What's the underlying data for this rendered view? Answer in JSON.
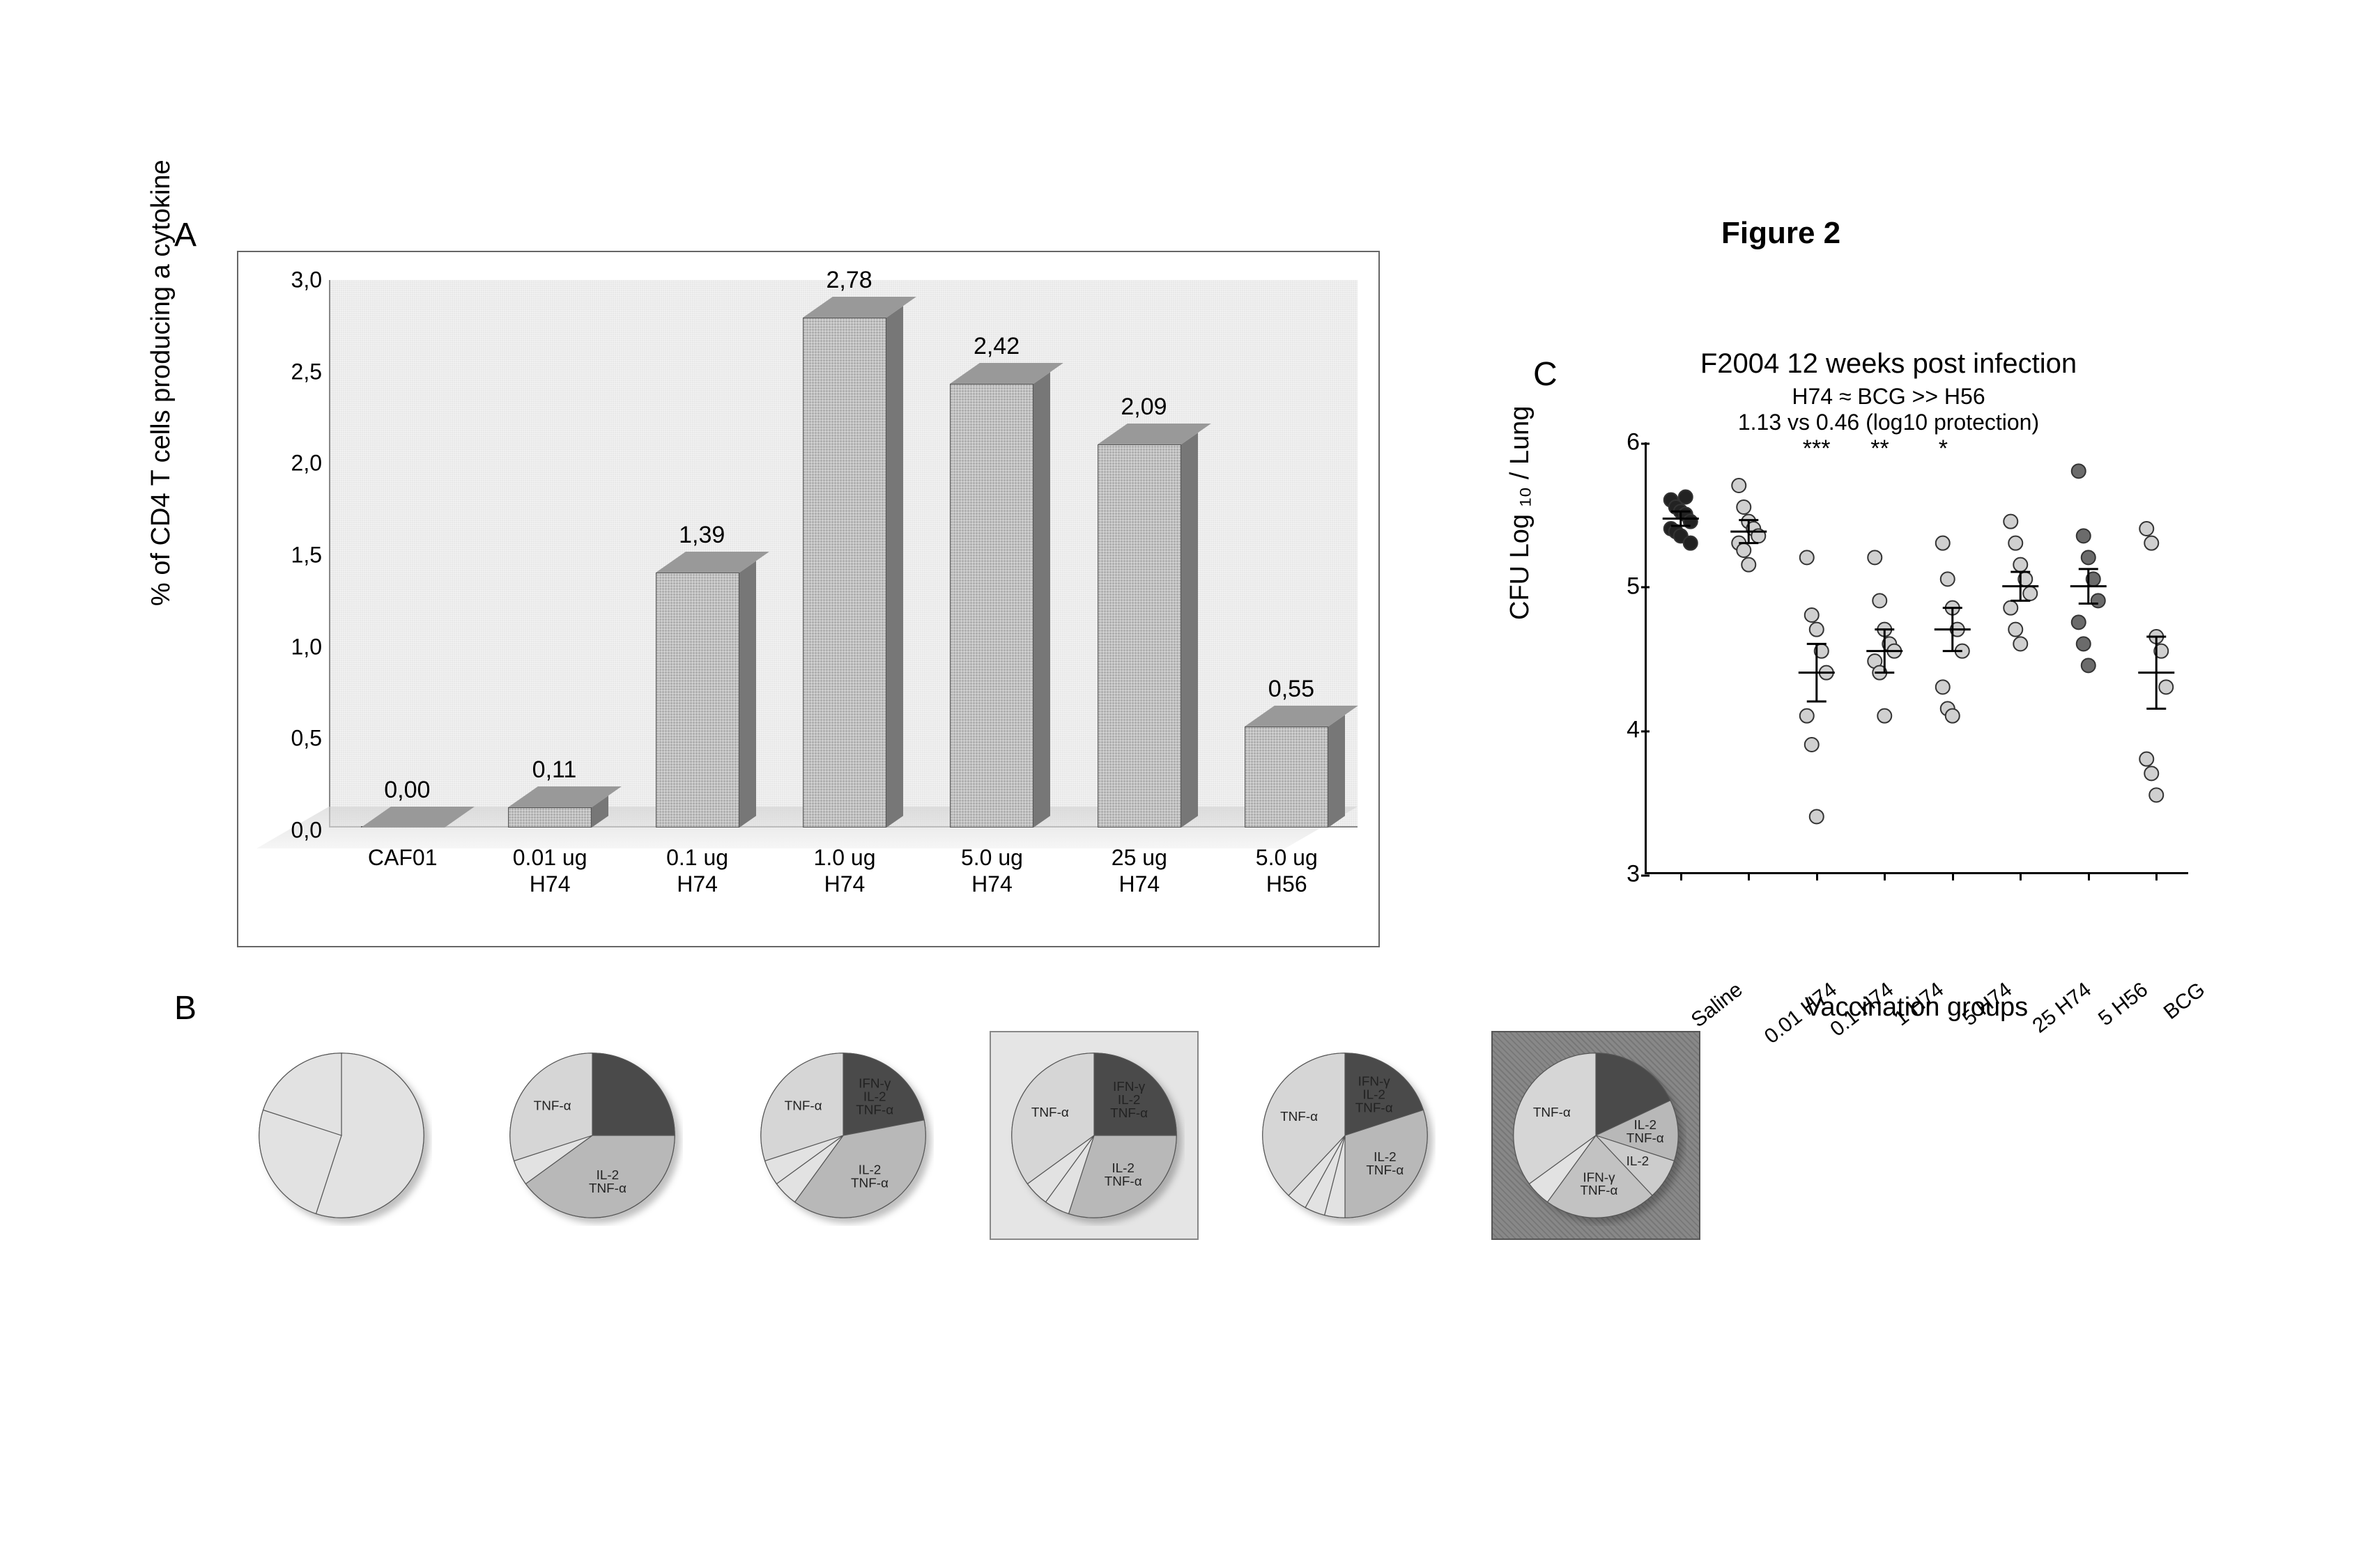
{
  "figure_caption": "Figure 2",
  "panels": {
    "A": "A",
    "B": "B",
    "C": "C"
  },
  "panelA": {
    "type": "bar",
    "ylabel": "% of CD4 T cells producing a cytokine",
    "ylim": [
      0,
      3.0
    ],
    "ytick_step": 0.5,
    "yticks_labels": [
      "0,0",
      "0,5",
      "1,0",
      "1,5",
      "2,0",
      "2,5",
      "3,0"
    ],
    "bar_color": "#b0b0b0",
    "background_color": "#e8e8e8",
    "value_fontsize": 34,
    "label_fontsize": 32,
    "categories": [
      "CAF01",
      "0.01 ug\nH74",
      "0.1 ug\nH74",
      "1.0 ug\nH74",
      "5.0 ug\nH74",
      "25 ug\nH74",
      "5.0 ug\nH56"
    ],
    "values": [
      0.0,
      0.11,
      1.39,
      2.78,
      2.42,
      2.09,
      0.55
    ],
    "value_labels": [
      "0,00",
      "0,11",
      "1,39",
      "2,78",
      "2,42",
      "2,09",
      "0,55"
    ]
  },
  "panelB": {
    "type": "pie-row",
    "pie_colors": {
      "triple": "#4a4a4a",
      "il2_tnf": "#b8b8b8",
      "tnf": "#d6d6d6",
      "ifn_tnf": "#c2c2c2",
      "il2": "#cccccc",
      "other": "#e2e2e2",
      "stroke": "#555555"
    },
    "label_fontsize": 16,
    "highlighted": [
      3,
      5
    ],
    "highlight_styles": [
      "light",
      "dark"
    ],
    "pies": [
      {
        "slices": [
          {
            "name": "other",
            "frac": 0.55
          },
          {
            "name": "other",
            "frac": 0.25
          },
          {
            "name": "other",
            "frac": 0.2
          }
        ],
        "labels": []
      },
      {
        "slices": [
          {
            "name": "triple",
            "frac": 0.25
          },
          {
            "name": "il2_tnf",
            "frac": 0.4,
            "label": "IL-2\nTNF-α"
          },
          {
            "name": "other",
            "frac": 0.05
          },
          {
            "name": "tnf",
            "frac": 0.3,
            "label": "TNF-α"
          }
        ]
      },
      {
        "slices": [
          {
            "name": "triple",
            "frac": 0.22,
            "label": "IFN-γ\nIL-2\nTNF-α"
          },
          {
            "name": "il2_tnf",
            "frac": 0.38,
            "label": "IL-2\nTNF-α"
          },
          {
            "name": "other",
            "frac": 0.05
          },
          {
            "name": "other",
            "frac": 0.05
          },
          {
            "name": "tnf",
            "frac": 0.3,
            "label": "TNF-α"
          }
        ]
      },
      {
        "slices": [
          {
            "name": "triple",
            "frac": 0.25,
            "label": "IFN-γ\nIL-2\nTNF-α"
          },
          {
            "name": "il2_tnf",
            "frac": 0.3,
            "label": "IL-2\nTNF-α"
          },
          {
            "name": "other",
            "frac": 0.05
          },
          {
            "name": "other",
            "frac": 0.05
          },
          {
            "name": "tnf",
            "frac": 0.35,
            "label": "TNF-α"
          }
        ]
      },
      {
        "slices": [
          {
            "name": "triple",
            "frac": 0.2,
            "label": "IFN-γ\nIL-2\nTNF-α"
          },
          {
            "name": "il2_tnf",
            "frac": 0.3,
            "label": "IL-2\nTNF-α"
          },
          {
            "name": "other",
            "frac": 0.04
          },
          {
            "name": "other",
            "frac": 0.04
          },
          {
            "name": "other",
            "frac": 0.04
          },
          {
            "name": "tnf",
            "frac": 0.38,
            "label": "TNF-α"
          }
        ]
      },
      {
        "slices": [
          {
            "name": "triple",
            "frac": 0.18
          },
          {
            "name": "il2_tnf",
            "frac": 0.12,
            "label": "IL-2\nTNF-α"
          },
          {
            "name": "il2",
            "frac": 0.08,
            "label": "IL-2"
          },
          {
            "name": "ifn_tnf",
            "frac": 0.22,
            "label": "IFN-γ\nTNF-α"
          },
          {
            "name": "other",
            "frac": 0.05
          },
          {
            "name": "tnf",
            "frac": 0.35,
            "label": "TNF-α"
          }
        ]
      }
    ]
  },
  "panelC": {
    "type": "scatter",
    "title": "F2004 12 weeks post infection",
    "subtitle1": "H74 ≈ BCG >> H56",
    "subtitle2": "1.13 vs 0.46 (log10 protection)",
    "ylabel": "CFU Log ₁₀ / Lung",
    "xlabel": "Vaccination groups",
    "ylim": [
      3,
      6
    ],
    "ytick_step": 1,
    "title_fontsize": 40,
    "subtitle_fontsize": 32,
    "axis_label_fontsize": 38,
    "tick_fontsize": 34,
    "marker_stroke": "#333333",
    "colors": {
      "saline": "#222222",
      "light": "#d0d0d0",
      "dark": "#6b6b6b"
    },
    "groups": [
      {
        "name": "Saline",
        "color": "saline",
        "sig": "",
        "mean": 5.47,
        "sem": 0.05,
        "points": [
          5.6,
          5.55,
          5.52,
          5.5,
          5.45,
          5.4,
          5.38,
          5.35,
          5.62,
          5.3
        ]
      },
      {
        "name": "0.01 H74",
        "color": "light",
        "sig": "",
        "mean": 5.38,
        "sem": 0.08,
        "points": [
          5.7,
          5.55,
          5.45,
          5.4,
          5.35,
          5.3,
          5.25,
          5.15
        ]
      },
      {
        "name": "0.1 H74",
        "color": "light",
        "sig": "***",
        "mean": 4.4,
        "sem": 0.2,
        "points": [
          5.2,
          4.8,
          4.7,
          4.55,
          4.4,
          4.1,
          3.9,
          3.4
        ]
      },
      {
        "name": "1 H74",
        "color": "light",
        "sig": "**",
        "mean": 4.55,
        "sem": 0.15,
        "points": [
          5.2,
          4.9,
          4.7,
          4.6,
          4.55,
          4.48,
          4.4,
          4.1
        ]
      },
      {
        "name": "5 H74",
        "color": "light",
        "sig": "*",
        "mean": 4.7,
        "sem": 0.15,
        "points": [
          5.3,
          5.05,
          4.85,
          4.7,
          4.55,
          4.3,
          4.15,
          4.1
        ]
      },
      {
        "name": "25 H74",
        "color": "light",
        "sig": "",
        "mean": 5.0,
        "sem": 0.1,
        "points": [
          5.45,
          5.3,
          5.15,
          5.05,
          4.95,
          4.85,
          4.7,
          4.6
        ]
      },
      {
        "name": "5 H56",
        "color": "dark",
        "sig": "",
        "mean": 5.0,
        "sem": 0.12,
        "points": [
          5.8,
          5.35,
          5.2,
          5.05,
          4.9,
          4.75,
          4.6,
          4.45
        ]
      },
      {
        "name": "BCG",
        "color": "light",
        "sig": "",
        "mean": 4.4,
        "sem": 0.25,
        "points": [
          5.4,
          5.3,
          4.65,
          4.55,
          4.3,
          3.8,
          3.7,
          3.55
        ]
      }
    ]
  }
}
